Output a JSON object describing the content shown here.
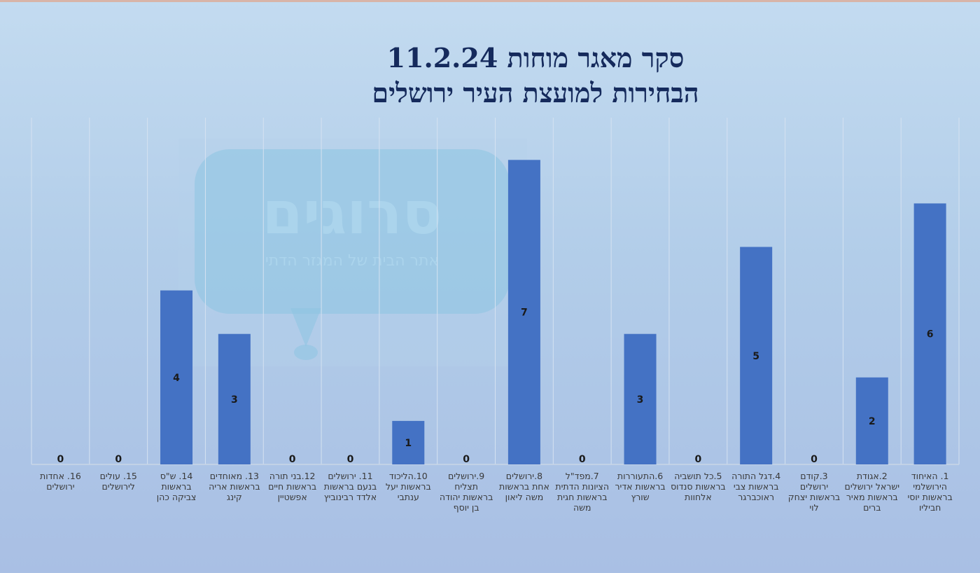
{
  "chart_data": {
    "type": "bar",
    "title": [
      "סקר מאגר מוחות 11.2.24",
      "הבחירות למועצת העיר ירושלים"
    ],
    "categories": [
      "1. האיחוד הירושלמי בראשות יוסי חביליו",
      "2.אגודת ישראל ירושלים בראשות מאיר ברים",
      "3.קודם ירושלים בראשות יצחק לוי",
      "4.דגל התורה בראשות צבי ראוכברגר",
      "5.כל תושביה בראשות סנדוס אלחוות",
      "6.התעוררות בראשות אדיר שורץ",
      "7.מפד\"ל הציונות הדתית בראשות חגית משה",
      "8.ירושלים אחת בראשות משה ליאון",
      "9.ירושלים תצליח בראשות יהודה בן יוסף",
      "10.הליכוד בראשות יעל ענתבי",
      "11. ירושלים בנעם בראשות אלדד רבינוביץ",
      "12.בני תורה בראשות חיים אפשטיין",
      "13. מאוחדים בראשות אריה קינג",
      "14. ש\"ס בראשות צביקה כהן",
      "15. עולים לירושלים",
      "16. אחדות ירושלים"
    ],
    "values": [
      6,
      2,
      0,
      5,
      0,
      3,
      0,
      7,
      0,
      1,
      0,
      0,
      3,
      4,
      0,
      0
    ],
    "ylim": [
      0,
      7
    ],
    "x_order": "right-to-left",
    "grid": "vertical",
    "legend": "none",
    "bar_color": "#4472c4",
    "data_labels": "inside-center"
  },
  "watermark": {
    "name": "סרוגים",
    "tagline": "אתר הבית של המגזר הדתי"
  }
}
